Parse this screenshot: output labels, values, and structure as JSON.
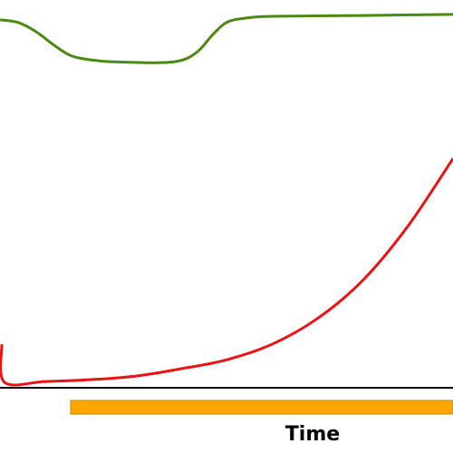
{
  "chart_data": {
    "type": "line",
    "x_label": "Time",
    "xlim": [
      0,
      100
    ],
    "ylim": [
      0,
      100
    ],
    "series": [
      {
        "color": "#4a8a12",
        "x": [
          0,
          4,
          8,
          12,
          16,
          22,
          30,
          37,
          41,
          44,
          47,
          50,
          54,
          60,
          80,
          100
        ],
        "values": [
          94.9,
          94.2,
          91.8,
          88.3,
          85.5,
          84.3,
          83.9,
          83.9,
          84.8,
          87.1,
          91.1,
          94.2,
          95.3,
          95.8,
          96.0,
          96.3
        ]
      },
      {
        "color": "#ee1111",
        "x": [
          0.4,
          1,
          10,
          20,
          30,
          40,
          50,
          60,
          70,
          80,
          90,
          100
        ],
        "values": [
          11.2,
          1.4,
          1.6,
          2.1,
          3.0,
          4.9,
          7.2,
          11.2,
          17.8,
          27.6,
          41.6,
          59.1
        ]
      }
    ],
    "span": {
      "x_start": 15.6,
      "x_end": 100,
      "color": "#ffa500"
    }
  }
}
